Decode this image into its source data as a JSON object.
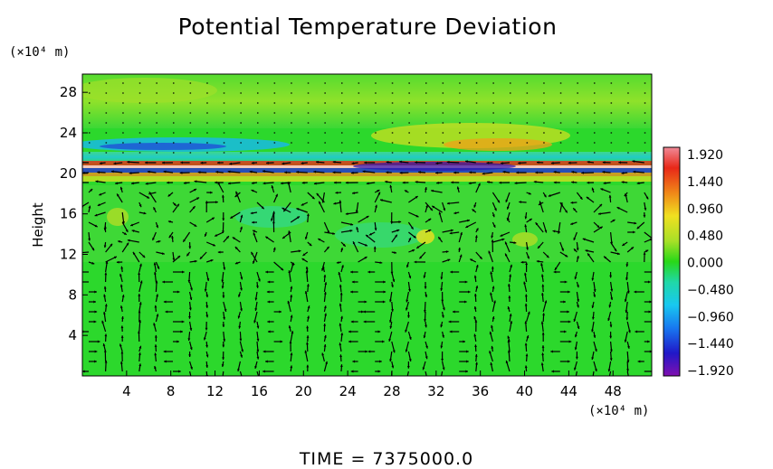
{
  "chart_data": {
    "type": "heatmap",
    "title": "Potential Temperature Deviation",
    "ylabel": "Height",
    "y_unit": "(×10⁴ m)",
    "x_unit": "(×10⁴ m)",
    "xlim": [
      0,
      51.5
    ],
    "ylim": [
      0,
      29.8
    ],
    "x_ticks": [
      "4",
      "8",
      "12",
      "16",
      "20",
      "24",
      "28",
      "32",
      "36",
      "40",
      "44",
      "48"
    ],
    "x_tick_values": [
      4,
      8,
      12,
      16,
      20,
      24,
      28,
      32,
      36,
      40,
      44,
      48
    ],
    "y_ticks": [
      "4",
      "8",
      "12",
      "16",
      "20",
      "24",
      "28"
    ],
    "y_tick_values": [
      4,
      8,
      12,
      16,
      20,
      24,
      28
    ],
    "colorbar": {
      "labels": [
        "1.920",
        "1.440",
        "0.960",
        "0.480",
        "0.000",
        "−0.480",
        "−0.960",
        "−1.440",
        "−1.920"
      ],
      "values": [
        1.92,
        1.44,
        0.96,
        0.48,
        0.0,
        -0.48,
        -0.96,
        -1.44,
        -1.92
      ],
      "colors": [
        "#f07a8a",
        "#e23020",
        "#f08818",
        "#f0e020",
        "#90e028",
        "#18d818",
        "#20d8a0",
        "#18c0f0",
        "#1878f0",
        "#2020d8",
        "#7010b0"
      ]
    },
    "overlay": "velocity vectors (arrows)",
    "background_color": "#28d828",
    "footer": "TIME  =  7375000.0"
  }
}
